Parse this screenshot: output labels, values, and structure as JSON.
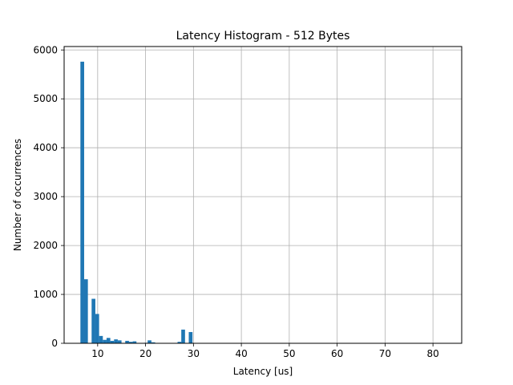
{
  "chart_data": {
    "type": "bar",
    "title": "Latency Histogram - 512 Bytes",
    "xlabel": "Latency [us]",
    "ylabel": "Number of occurrences",
    "xlim": [
      3,
      86
    ],
    "ylim": [
      0,
      6070
    ],
    "grid": true,
    "bar_color": "#1f77b4",
    "x_ticks": [
      10,
      20,
      30,
      40,
      50,
      60,
      70,
      80
    ],
    "y_ticks": [
      0,
      1000,
      2000,
      3000,
      4000,
      5000,
      6000
    ],
    "bins": [
      {
        "x0": 6.4,
        "x1": 7.18,
        "count": 5760
      },
      {
        "x0": 7.18,
        "x1": 7.96,
        "count": 1310
      },
      {
        "x0": 7.96,
        "x1": 8.74,
        "count": 0
      },
      {
        "x0": 8.74,
        "x1": 9.52,
        "count": 910
      },
      {
        "x0": 9.52,
        "x1": 10.3,
        "count": 600
      },
      {
        "x0": 10.3,
        "x1": 11.08,
        "count": 150
      },
      {
        "x0": 11.08,
        "x1": 11.86,
        "count": 70
      },
      {
        "x0": 11.86,
        "x1": 12.64,
        "count": 110
      },
      {
        "x0": 12.64,
        "x1": 13.42,
        "count": 50
      },
      {
        "x0": 13.42,
        "x1": 14.2,
        "count": 80
      },
      {
        "x0": 14.2,
        "x1": 14.98,
        "count": 60
      },
      {
        "x0": 14.98,
        "x1": 15.76,
        "count": 0
      },
      {
        "x0": 15.76,
        "x1": 16.54,
        "count": 50
      },
      {
        "x0": 16.54,
        "x1": 17.32,
        "count": 30
      },
      {
        "x0": 17.32,
        "x1": 18.1,
        "count": 40
      },
      {
        "x0": 18.1,
        "x1": 18.88,
        "count": 0
      },
      {
        "x0": 18.88,
        "x1": 19.66,
        "count": 0
      },
      {
        "x0": 19.66,
        "x1": 20.44,
        "count": 10
      },
      {
        "x0": 20.44,
        "x1": 21.22,
        "count": 60
      },
      {
        "x0": 21.22,
        "x1": 22.0,
        "count": 20
      },
      {
        "x0": 22.0,
        "x1": 22.78,
        "count": 0
      },
      {
        "x0": 22.78,
        "x1": 23.56,
        "count": 0
      },
      {
        "x0": 23.56,
        "x1": 24.34,
        "count": 0
      },
      {
        "x0": 24.34,
        "x1": 25.12,
        "count": 0
      },
      {
        "x0": 25.12,
        "x1": 25.9,
        "count": 0
      },
      {
        "x0": 25.9,
        "x1": 26.68,
        "count": 0
      },
      {
        "x0": 26.68,
        "x1": 27.46,
        "count": 30
      },
      {
        "x0": 27.46,
        "x1": 28.24,
        "count": 280
      },
      {
        "x0": 28.24,
        "x1": 29.02,
        "count": 0
      },
      {
        "x0": 29.02,
        "x1": 29.8,
        "count": 230
      }
    ]
  }
}
